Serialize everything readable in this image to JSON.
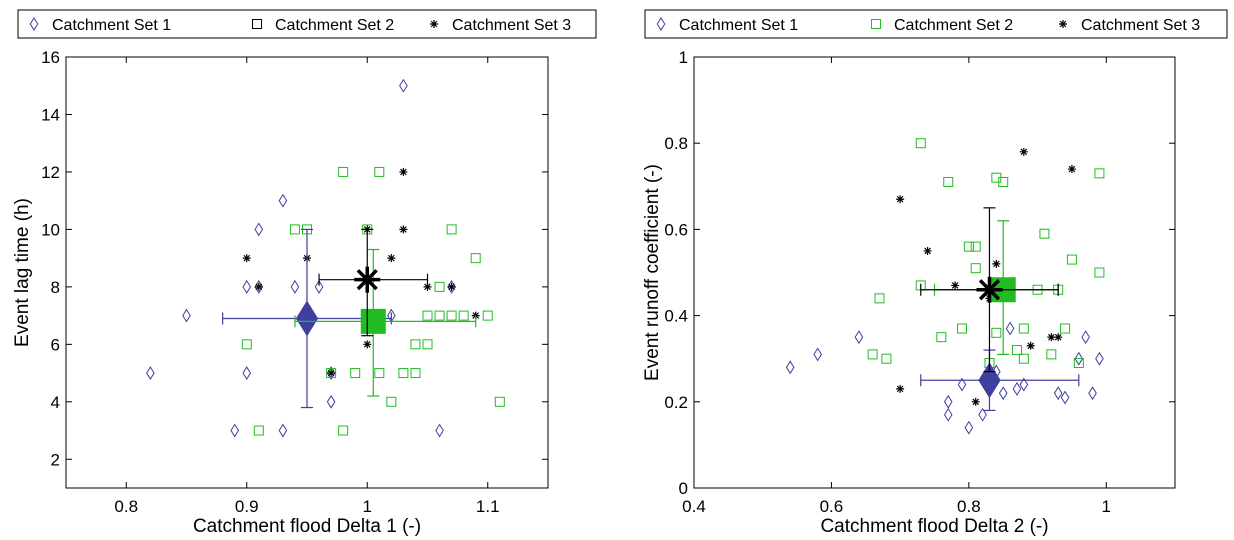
{
  "chart_data": [
    {
      "type": "scatter",
      "xlabel": "Catchment flood Delta 1 (-)",
      "ylabel": "Event lag time (h)",
      "xlim": [
        0.75,
        1.15
      ],
      "ylim": [
        1,
        16
      ],
      "xticks": [
        0.8,
        0.9,
        1,
        1.1
      ],
      "xtick_labels": [
        "0.8",
        "0.9",
        "1",
        "1.1"
      ],
      "yticks": [
        2,
        4,
        6,
        8,
        10,
        12,
        14,
        16
      ],
      "ytick_labels": [
        "2",
        "4",
        "6",
        "8",
        "10",
        "12",
        "14",
        "16"
      ],
      "grid": false,
      "legend_position": "top",
      "legend_layout": "horizontal",
      "series": [
        {
          "name": "Catchment Set 1",
          "marker": "diamond",
          "color": "#3f3f9f",
          "x": [
            0.82,
            0.85,
            0.89,
            0.9,
            0.9,
            0.91,
            0.91,
            0.93,
            0.93,
            0.94,
            0.96,
            0.97,
            0.97,
            1.02,
            1.03,
            1.06,
            1.07
          ],
          "y": [
            5,
            7,
            3,
            5,
            8,
            10,
            8,
            11,
            3,
            8,
            8,
            5,
            4,
            7,
            15,
            3,
            8
          ],
          "mean": {
            "x": 0.95,
            "y": 6.9
          },
          "error_x": [
            0.88,
            1.02
          ],
          "error_y": [
            3.8,
            10
          ]
        },
        {
          "name": "Catchment Set 2",
          "marker": "square",
          "color": "#22bb22",
          "legend_color": "#000000",
          "x": [
            0.9,
            0.91,
            0.94,
            0.95,
            0.97,
            0.98,
            0.98,
            0.99,
            1.0,
            1.01,
            1.01,
            1.02,
            1.03,
            1.04,
            1.04,
            1.05,
            1.05,
            1.06,
            1.06,
            1.07,
            1.07,
            1.08,
            1.09,
            1.1,
            1.11
          ],
          "y": [
            6,
            3,
            10,
            10,
            5,
            12,
            3,
            5,
            10,
            12,
            5,
            4,
            5,
            5,
            6,
            6,
            7,
            8,
            7,
            10,
            7,
            7,
            9,
            7,
            4
          ],
          "mean": {
            "x": 1.005,
            "y": 6.8
          },
          "error_x": [
            0.94,
            1.09
          ],
          "error_y": [
            4.2,
            9.3
          ]
        },
        {
          "name": "Catchment Set 3",
          "marker": "star",
          "color": "#000000",
          "x": [
            0.9,
            0.91,
            0.95,
            0.97,
            1.0,
            1.0,
            1.03,
            1.03,
            1.02,
            1.05,
            1.07,
            1.09,
            1.0
          ],
          "y": [
            9,
            8,
            9,
            5,
            10,
            6,
            12,
            10,
            9,
            8,
            8,
            7,
            7
          ],
          "mean": {
            "x": 1.0,
            "y": 8.25
          },
          "error_x": [
            0.96,
            1.05
          ],
          "error_y": [
            6.3,
            10
          ]
        }
      ]
    },
    {
      "type": "scatter",
      "xlabel": "Catchment flood Delta 2 (-)",
      "ylabel": "Event runoff coefficient (-)",
      "xlim": [
        0.4,
        1.1
      ],
      "ylim": [
        0,
        1
      ],
      "xticks": [
        0.4,
        0.6,
        0.8,
        1
      ],
      "xtick_labels": [
        "0.4",
        "0.6",
        "0.8",
        "1"
      ],
      "yticks": [
        0,
        0.2,
        0.4,
        0.6,
        0.8,
        1
      ],
      "ytick_labels": [
        "0",
        "0.2",
        "0.4",
        "0.6",
        "0.8",
        "1"
      ],
      "grid": false,
      "legend_position": "top",
      "legend_layout": "horizontal",
      "series": [
        {
          "name": "Catchment Set 1",
          "marker": "diamond",
          "color": "#3f3f9f",
          "x": [
            0.54,
            0.58,
            0.64,
            0.77,
            0.77,
            0.79,
            0.8,
            0.82,
            0.84,
            0.85,
            0.86,
            0.87,
            0.88,
            0.93,
            0.94,
            0.96,
            0.97,
            0.98,
            0.99
          ],
          "y": [
            0.28,
            0.31,
            0.35,
            0.2,
            0.17,
            0.24,
            0.14,
            0.17,
            0.27,
            0.22,
            0.37,
            0.23,
            0.24,
            0.22,
            0.21,
            0.3,
            0.35,
            0.22,
            0.3
          ],
          "mean": {
            "x": 0.83,
            "y": 0.25
          },
          "error_x": [
            0.73,
            0.96
          ],
          "error_y": [
            0.18,
            0.32
          ]
        },
        {
          "name": "Catchment Set 2",
          "marker": "square",
          "color": "#22bb22",
          "x": [
            0.66,
            0.67,
            0.68,
            0.73,
            0.73,
            0.76,
            0.77,
            0.79,
            0.8,
            0.81,
            0.81,
            0.83,
            0.84,
            0.84,
            0.85,
            0.86,
            0.87,
            0.88,
            0.88,
            0.9,
            0.91,
            0.92,
            0.93,
            0.94,
            0.95,
            0.96,
            0.99,
            0.99
          ],
          "y": [
            0.31,
            0.44,
            0.3,
            0.8,
            0.47,
            0.35,
            0.71,
            0.37,
            0.56,
            0.51,
            0.56,
            0.29,
            0.72,
            0.36,
            0.71,
            0.46,
            0.32,
            0.3,
            0.37,
            0.46,
            0.59,
            0.31,
            0.46,
            0.37,
            0.53,
            0.29,
            0.73,
            0.5
          ],
          "mean": {
            "x": 0.85,
            "y": 0.46
          },
          "error_x": [
            0.75,
            0.93
          ],
          "error_y": [
            0.31,
            0.62
          ]
        },
        {
          "name": "Catchment Set 3",
          "marker": "star",
          "color": "#000000",
          "x": [
            0.7,
            0.7,
            0.74,
            0.78,
            0.81,
            0.83,
            0.84,
            0.88,
            0.89,
            0.92,
            0.93,
            0.95
          ],
          "y": [
            0.67,
            0.23,
            0.55,
            0.47,
            0.2,
            0.44,
            0.52,
            0.78,
            0.33,
            0.35,
            0.35,
            0.74
          ],
          "mean": {
            "x": 0.83,
            "y": 0.46
          },
          "error_x": [
            0.73,
            0.93
          ],
          "error_y": [
            0.27,
            0.65
          ]
        }
      ]
    }
  ]
}
